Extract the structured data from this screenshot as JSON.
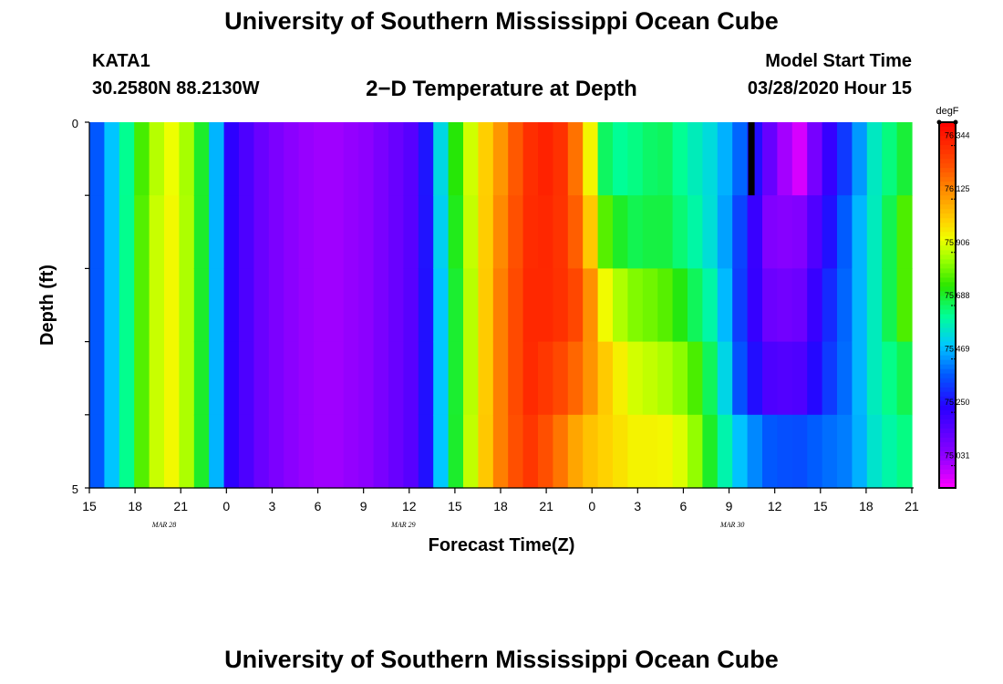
{
  "header": {
    "title": "University of Southern Mississippi Ocean Cube",
    "station": "KATA1",
    "coords": "30.2580N 88.2130W",
    "subtitle": "2−D Temperature at Depth",
    "model_start_label": "Model Start Time",
    "model_start_time": "03/28/2020 Hour 15"
  },
  "footer": {
    "title": "University of Southern Mississippi Ocean Cube"
  },
  "chart_data": {
    "type": "heatmap",
    "xlabel": "Forecast Time(Z)",
    "ylabel": "Depth (ft)",
    "ylim": [
      0,
      5
    ],
    "y_tick_labels": [
      "0",
      "5"
    ],
    "x_tick_labels": [
      "15",
      "18",
      "21",
      "0",
      "3",
      "6",
      "9",
      "12",
      "15",
      "18",
      "21",
      "0",
      "3",
      "6",
      "9",
      "12",
      "15",
      "18",
      "21"
    ],
    "date_labels": [
      {
        "text": "MAR  28",
        "hour_index": 5
      },
      {
        "text": "MAR  29",
        "hour_index": 21
      },
      {
        "text": "MAR  30",
        "hour_index": 43
      }
    ],
    "colorbar": {
      "unit": "degF",
      "min": 74.94,
      "max": 76.44,
      "ticks": [
        "76.344",
        "76.125",
        "75.906",
        "75.688",
        "75.469",
        "75.250",
        "75.031"
      ]
    },
    "depth_levels": 5,
    "time_steps": 55,
    "columns_coarse": [
      [
        75.4,
        75.4,
        75.4,
        75.4,
        75.4
      ],
      [
        75.62,
        75.62,
        75.62,
        75.62,
        75.62
      ],
      [
        75.88,
        75.9,
        75.9,
        75.9,
        75.9
      ],
      [
        75.98,
        75.99,
        75.99,
        75.99,
        75.99
      ],
      [
        75.7,
        75.7,
        75.7,
        75.7,
        75.7
      ],
      [
        75.26,
        75.26,
        75.26,
        75.26,
        75.26
      ],
      [
        75.15,
        75.15,
        75.15,
        75.15,
        75.15
      ],
      [
        75.09,
        75.09,
        75.09,
        75.09,
        75.09
      ],
      [
        75.05,
        75.05,
        75.05,
        75.05,
        75.05
      ],
      [
        75.05,
        75.05,
        75.05,
        75.05,
        75.05
      ],
      [
        75.08,
        75.08,
        75.08,
        75.08,
        75.08
      ],
      [
        75.14,
        75.14,
        75.14,
        75.14,
        75.14
      ],
      [
        75.2,
        75.2,
        75.2,
        75.2,
        75.2
      ],
      [
        75.66,
        75.64,
        75.62,
        75.62,
        75.62
      ],
      [
        75.96,
        75.95,
        75.94,
        75.94,
        75.95
      ],
      [
        76.14,
        76.16,
        76.18,
        76.18,
        76.18
      ],
      [
        76.33,
        76.34,
        76.35,
        76.35,
        76.33
      ],
      [
        76.38,
        76.36,
        76.35,
        76.3,
        76.23
      ],
      [
        76.15,
        76.2,
        76.26,
        76.2,
        76.08
      ],
      [
        75.63,
        75.76,
        75.93,
        76.03,
        76.03
      ],
      [
        75.66,
        75.7,
        75.85,
        75.93,
        75.98
      ],
      [
        75.7,
        75.72,
        75.82,
        75.9,
        75.98
      ],
      [
        75.62,
        75.65,
        75.72,
        75.84,
        75.92
      ],
      [
        75.55,
        75.55,
        75.6,
        75.65,
        75.68
      ],
      [
        75.4,
        75.35,
        75.33,
        75.36,
        75.5
      ],
      [
        75.15,
        75.1,
        75.14,
        75.2,
        75.4
      ],
      [
        74.96,
        75.08,
        75.12,
        75.18,
        75.38
      ],
      [
        75.2,
        75.25,
        75.3,
        75.33,
        75.42
      ],
      [
        75.4,
        75.45,
        75.45,
        75.45,
        75.45
      ],
      [
        75.62,
        75.62,
        75.62,
        75.62,
        75.6
      ],
      [
        75.72,
        75.8,
        75.8,
        75.7,
        75.66
      ]
    ],
    "markers": [
      {
        "label": "model start",
        "hour_index": 44,
        "depth_level": 0
      }
    ]
  }
}
